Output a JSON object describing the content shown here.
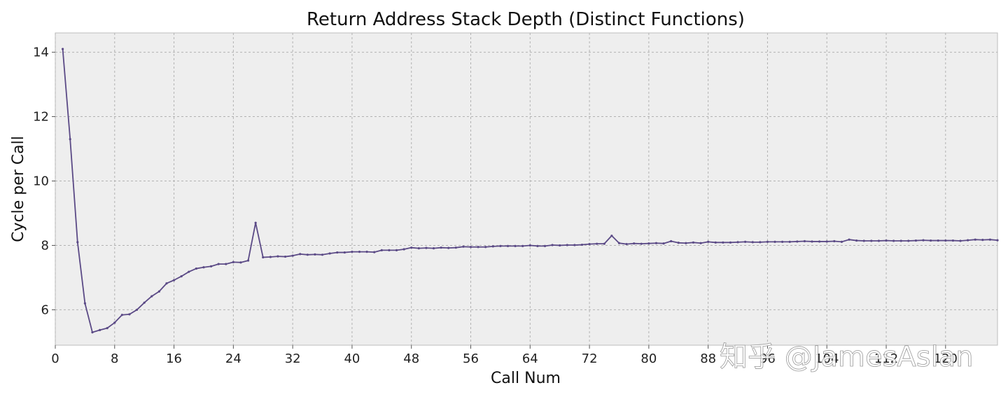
{
  "watermark": "知乎 @JamesAslan",
  "chart_data": {
    "type": "line",
    "title": "Return Address Stack Depth (Distinct Functions)",
    "xlabel": "Call Num",
    "ylabel": "Cycle per Call",
    "xlim": [
      0,
      127
    ],
    "ylim": [
      4.9,
      14.6
    ],
    "xticks": [
      0,
      8,
      16,
      24,
      32,
      40,
      48,
      56,
      64,
      72,
      80,
      88,
      96,
      104,
      112,
      120
    ],
    "yticks": [
      6,
      8,
      10,
      12,
      14
    ],
    "grid": true,
    "series": [
      {
        "color": "#5b4a86",
        "x": [
          1,
          2,
          3,
          4,
          5,
          6,
          7,
          8,
          9,
          10,
          11,
          12,
          13,
          14,
          15,
          16,
          17,
          18,
          19,
          20,
          21,
          22,
          23,
          24,
          25,
          26,
          27,
          28,
          29,
          30,
          31,
          32,
          33,
          34,
          35,
          36,
          37,
          38,
          39,
          40,
          41,
          42,
          43,
          44,
          45,
          46,
          47,
          48,
          49,
          50,
          51,
          52,
          53,
          54,
          55,
          56,
          57,
          58,
          59,
          60,
          61,
          62,
          63,
          64,
          65,
          66,
          67,
          68,
          69,
          70,
          71,
          72,
          73,
          74,
          75,
          76,
          77,
          78,
          79,
          80,
          81,
          82,
          83,
          84,
          85,
          86,
          87,
          88,
          89,
          90,
          91,
          92,
          93,
          94,
          95,
          96,
          97,
          98,
          99,
          100,
          101,
          102,
          103,
          104,
          105,
          106,
          107,
          108,
          109,
          110,
          111,
          112,
          113,
          114,
          115,
          116,
          117,
          118,
          119,
          120,
          121,
          122,
          123,
          124,
          125,
          126,
          127
        ],
        "y": [
          14.1,
          11.3,
          8.1,
          6.2,
          5.3,
          5.37,
          5.43,
          5.6,
          5.84,
          5.86,
          6.0,
          6.22,
          6.42,
          6.57,
          6.82,
          6.92,
          7.04,
          7.18,
          7.28,
          7.32,
          7.35,
          7.42,
          7.42,
          7.48,
          7.47,
          7.53,
          8.7,
          7.63,
          7.64,
          7.66,
          7.65,
          7.68,
          7.73,
          7.71,
          7.72,
          7.71,
          7.75,
          7.78,
          7.78,
          7.8,
          7.8,
          7.8,
          7.79,
          7.85,
          7.85,
          7.85,
          7.88,
          7.93,
          7.91,
          7.92,
          7.91,
          7.93,
          7.92,
          7.93,
          7.96,
          7.95,
          7.95,
          7.95,
          7.97,
          7.98,
          7.98,
          7.98,
          7.98,
          8.0,
          7.98,
          7.98,
          8.01,
          8.0,
          8.01,
          8.01,
          8.02,
          8.04,
          8.05,
          8.05,
          8.3,
          8.07,
          8.04,
          8.06,
          8.05,
          8.06,
          8.07,
          8.06,
          8.13,
          8.08,
          8.07,
          8.09,
          8.07,
          8.11,
          8.09,
          8.09,
          8.09,
          8.1,
          8.11,
          8.1,
          8.1,
          8.11,
          8.11,
          8.11,
          8.11,
          8.12,
          8.13,
          8.12,
          8.12,
          8.12,
          8.13,
          8.11,
          8.18,
          8.15,
          8.14,
          8.14,
          8.14,
          8.15,
          8.14,
          8.14,
          8.14,
          8.15,
          8.16,
          8.15,
          8.15,
          8.15,
          8.15,
          8.14,
          8.16,
          8.18,
          8.17,
          8.18,
          8.16
        ]
      }
    ]
  }
}
